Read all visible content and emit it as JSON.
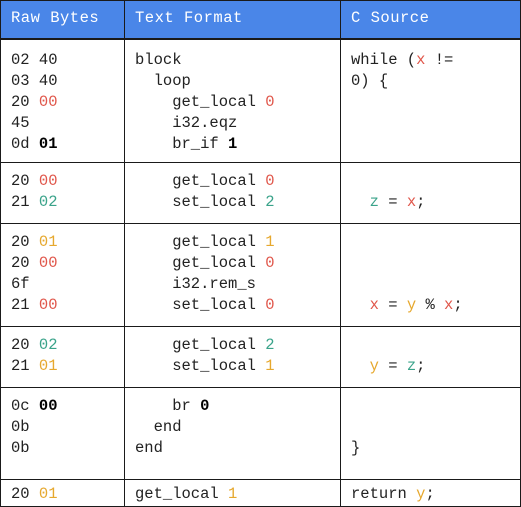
{
  "headers": [
    "Raw Bytes",
    "Text Format",
    "C Source"
  ],
  "colors": {
    "local0": "#e0564a",
    "local1": "#e6a82e",
    "local2": "#3aa38a",
    "header_bg": "#4a86e8"
  },
  "rows": [
    {
      "raw": [
        [
          {
            "t": "02 40"
          }
        ],
        [
          {
            "t": "03 40"
          }
        ],
        [
          {
            "t": "20 "
          },
          {
            "t": "00",
            "c": "red"
          }
        ],
        [
          {
            "t": "45"
          }
        ],
        [
          {
            "t": "0d "
          },
          {
            "t": "01",
            "c": "bold"
          }
        ]
      ],
      "text": [
        [
          {
            "t": "block"
          }
        ],
        [
          {
            "t": "  loop"
          }
        ],
        [
          {
            "t": "    get_local "
          },
          {
            "t": "0",
            "c": "red"
          }
        ],
        [
          {
            "t": "    i32.eqz"
          }
        ],
        [
          {
            "t": "    br_if "
          },
          {
            "t": "1",
            "c": "bold"
          }
        ]
      ],
      "c": [
        [
          {
            "t": "while ("
          },
          {
            "t": "x",
            "c": "red"
          },
          {
            "t": " !="
          }
        ],
        [
          {
            "t": "0) {"
          }
        ]
      ],
      "c_offset": 0
    },
    {
      "raw": [
        [
          {
            "t": "20 "
          },
          {
            "t": "00",
            "c": "red"
          }
        ],
        [
          {
            "t": "21 "
          },
          {
            "t": "02",
            "c": "green"
          }
        ]
      ],
      "text": [
        [
          {
            "t": "    get_local "
          },
          {
            "t": "0",
            "c": "red"
          }
        ],
        [
          {
            "t": "    set_local "
          },
          {
            "t": "2",
            "c": "green"
          }
        ]
      ],
      "c": [
        [
          {
            "t": "  "
          },
          {
            "t": "z",
            "c": "green"
          },
          {
            "t": " = "
          },
          {
            "t": "x",
            "c": "red"
          },
          {
            "t": ";"
          }
        ]
      ],
      "c_offset": 1
    },
    {
      "raw": [
        [
          {
            "t": "20 "
          },
          {
            "t": "01",
            "c": "yellow"
          }
        ],
        [
          {
            "t": "20 "
          },
          {
            "t": "00",
            "c": "red"
          }
        ],
        [
          {
            "t": "6f"
          }
        ],
        [
          {
            "t": "21 "
          },
          {
            "t": "00",
            "c": "red"
          }
        ]
      ],
      "text": [
        [
          {
            "t": "    get_local "
          },
          {
            "t": "1",
            "c": "yellow"
          }
        ],
        [
          {
            "t": "    get_local "
          },
          {
            "t": "0",
            "c": "red"
          }
        ],
        [
          {
            "t": "    i32.rem_s"
          }
        ],
        [
          {
            "t": "    set_local "
          },
          {
            "t": "0",
            "c": "red"
          }
        ]
      ],
      "c": [
        [
          {
            "t": "  "
          },
          {
            "t": "x",
            "c": "red"
          },
          {
            "t": " = "
          },
          {
            "t": "y",
            "c": "yellow"
          },
          {
            "t": " % "
          },
          {
            "t": "x",
            "c": "red"
          },
          {
            "t": ";"
          }
        ]
      ],
      "c_offset": 3
    },
    {
      "raw": [
        [
          {
            "t": "20 "
          },
          {
            "t": "02",
            "c": "green"
          }
        ],
        [
          {
            "t": "21 "
          },
          {
            "t": "01",
            "c": "yellow"
          }
        ]
      ],
      "text": [
        [
          {
            "t": "    get_local "
          },
          {
            "t": "2",
            "c": "green"
          }
        ],
        [
          {
            "t": "    set_local "
          },
          {
            "t": "1",
            "c": "yellow"
          }
        ]
      ],
      "c": [
        [
          {
            "t": "  "
          },
          {
            "t": "y",
            "c": "yellow"
          },
          {
            "t": " = "
          },
          {
            "t": "z",
            "c": "green"
          },
          {
            "t": ";"
          }
        ]
      ],
      "c_offset": 1
    },
    {
      "raw": [
        [
          {
            "t": "0c "
          },
          {
            "t": "00",
            "c": "bold"
          }
        ],
        [
          {
            "t": "0b"
          }
        ],
        [
          {
            "t": "0b"
          }
        ]
      ],
      "text": [
        [
          {
            "t": "    br "
          },
          {
            "t": "0",
            "c": "bold"
          }
        ],
        [
          {
            "t": "  end"
          }
        ],
        [
          {
            "t": "end"
          }
        ]
      ],
      "c": [
        [
          {
            "t": "}"
          }
        ]
      ],
      "c_offset": 2
    },
    {
      "raw": [
        [
          {
            "t": "20 "
          },
          {
            "t": "01",
            "c": "yellow"
          }
        ]
      ],
      "text": [
        [
          {
            "t": "get_local "
          },
          {
            "t": "1",
            "c": "yellow"
          }
        ]
      ],
      "c": [
        [
          {
            "t": "return "
          },
          {
            "t": "y",
            "c": "yellow"
          },
          {
            "t": ";"
          }
        ]
      ],
      "c_offset": 0
    }
  ]
}
